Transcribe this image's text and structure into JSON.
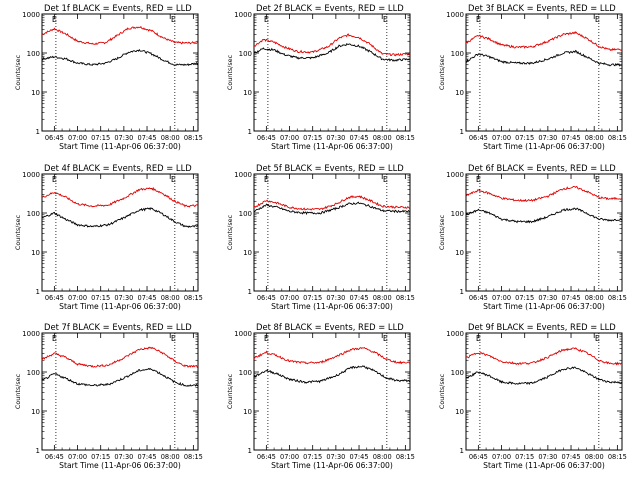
{
  "ylabel": "Counts/sec",
  "xlabel": "Start Time (11-Apr-06 06:37:00)",
  "x_ticks": [
    "06:45",
    "07:00",
    "07:15",
    "07:30",
    "07:45",
    "08:00",
    "08:15"
  ],
  "y_ticks": [
    "1",
    "10",
    "100",
    "1000"
  ],
  "marker_letter": "E",
  "colors": {
    "events": "#000000",
    "lld": "#e00000"
  },
  "chart_data": [
    {
      "type": "line",
      "title": "Det 1f  BLACK = Events, RED = LLD",
      "yscale": "log",
      "ylim": [
        1,
        1000
      ],
      "series": [
        {
          "x": [
            "06:37",
            "06:45",
            "06:53",
            "07:00",
            "07:10",
            "07:18",
            "07:25",
            "07:33",
            "07:40",
            "07:48",
            "07:56",
            "08:03",
            "08:08",
            "08:11",
            "08:18"
          ],
          "values": [
            70,
            80,
            70,
            55,
            50,
            55,
            70,
            105,
            120,
            95,
            65,
            50,
            50,
            50,
            55
          ]
        },
        {
          "x": [
            "06:37",
            "06:45",
            "06:53",
            "07:00",
            "07:10",
            "07:18",
            "07:25",
            "07:33",
            "07:40",
            "07:48",
            "07:56",
            "08:03",
            "08:08",
            "08:11",
            "08:18"
          ],
          "values": [
            300,
            420,
            300,
            200,
            170,
            185,
            270,
            430,
            470,
            370,
            240,
            185,
            180,
            180,
            185
          ]
        }
      ]
    },
    {
      "type": "line",
      "title": "Det 2f  BLACK = Events, RED = LLD",
      "yscale": "log",
      "ylim": [
        1,
        1000
      ],
      "series": [
        {
          "x": [
            "06:37",
            "06:43",
            "06:50",
            "06:57",
            "07:05",
            "07:15",
            "07:25",
            "07:32",
            "07:38",
            "07:45",
            "07:52",
            "08:00",
            "08:08",
            "08:18"
          ],
          "values": [
            100,
            130,
            120,
            90,
            75,
            75,
            100,
            150,
            170,
            150,
            110,
            70,
            65,
            70
          ]
        },
        {
          "x": [
            "06:37",
            "06:43",
            "06:50",
            "06:57",
            "07:05",
            "07:15",
            "07:25",
            "07:32",
            "07:38",
            "07:45",
            "07:52",
            "08:00",
            "08:08",
            "08:18"
          ],
          "values": [
            150,
            220,
            190,
            140,
            110,
            105,
            145,
            240,
            290,
            250,
            170,
            95,
            90,
            95
          ]
        }
      ]
    },
    {
      "type": "line",
      "title": "Det 3f  BLACK = Events, RED = LLD",
      "yscale": "log",
      "ylim": [
        1,
        1000
      ],
      "series": [
        {
          "x": [
            "06:37",
            "06:45",
            "06:52",
            "07:00",
            "07:10",
            "07:20",
            "07:30",
            "07:40",
            "07:48",
            "07:55",
            "08:03",
            "08:10",
            "08:18"
          ],
          "values": [
            60,
            95,
            80,
            60,
            55,
            55,
            70,
            100,
            110,
            80,
            55,
            50,
            50
          ]
        },
        {
          "x": [
            "06:37",
            "06:45",
            "06:52",
            "07:00",
            "07:10",
            "07:20",
            "07:30",
            "07:40",
            "07:48",
            "07:55",
            "08:03",
            "08:10",
            "08:18"
          ],
          "values": [
            180,
            280,
            230,
            160,
            140,
            145,
            200,
            300,
            330,
            240,
            150,
            120,
            125
          ]
        }
      ]
    },
    {
      "type": "line",
      "title": "Det 4f  BLACK = Events, RED = LLD",
      "yscale": "log",
      "ylim": [
        1,
        1000
      ],
      "series": [
        {
          "x": [
            "06:37",
            "06:45",
            "06:52",
            "07:00",
            "07:10",
            "07:20",
            "07:30",
            "07:40",
            "07:48",
            "07:55",
            "08:03",
            "08:10",
            "08:18"
          ],
          "values": [
            75,
            100,
            70,
            50,
            45,
            50,
            75,
            120,
            130,
            95,
            60,
            45,
            45
          ]
        },
        {
          "x": [
            "06:37",
            "06:45",
            "06:52",
            "07:00",
            "07:10",
            "07:20",
            "07:30",
            "07:40",
            "07:48",
            "07:55",
            "08:03",
            "08:10",
            "08:18"
          ],
          "values": [
            250,
            340,
            260,
            170,
            150,
            160,
            240,
            400,
            430,
            320,
            200,
            150,
            155
          ]
        }
      ]
    },
    {
      "type": "line",
      "title": "Det 5f  BLACK = Events, RED = LLD",
      "yscale": "log",
      "ylim": [
        1,
        1000
      ],
      "series": [
        {
          "x": [
            "06:37",
            "06:45",
            "06:52",
            "07:00",
            "07:10",
            "07:20",
            "07:30",
            "07:38",
            "07:45",
            "07:52",
            "08:00",
            "08:10",
            "08:18"
          ],
          "values": [
            110,
            160,
            140,
            110,
            100,
            100,
            130,
            170,
            180,
            150,
            115,
            110,
            110
          ]
        },
        {
          "x": [
            "06:37",
            "06:45",
            "06:52",
            "07:00",
            "07:10",
            "07:20",
            "07:30",
            "07:38",
            "07:45",
            "07:52",
            "08:00",
            "08:10",
            "08:18"
          ],
          "values": [
            140,
            210,
            180,
            140,
            125,
            125,
            170,
            250,
            270,
            210,
            150,
            140,
            140
          ]
        }
      ]
    },
    {
      "type": "line",
      "title": "Det 6f  BLACK = Events, RED = LLD",
      "yscale": "log",
      "ylim": [
        1,
        1000
      ],
      "series": [
        {
          "x": [
            "06:37",
            "06:45",
            "06:52",
            "07:00",
            "07:10",
            "07:20",
            "07:30",
            "07:40",
            "07:48",
            "07:55",
            "08:03",
            "08:10",
            "08:18"
          ],
          "values": [
            90,
            120,
            100,
            70,
            60,
            60,
            80,
            120,
            130,
            100,
            70,
            65,
            70
          ]
        },
        {
          "x": [
            "06:37",
            "06:45",
            "06:52",
            "07:00",
            "07:10",
            "07:20",
            "07:30",
            "07:40",
            "07:48",
            "07:55",
            "08:03",
            "08:10",
            "08:18"
          ],
          "values": [
            280,
            380,
            320,
            240,
            210,
            210,
            270,
            420,
            460,
            360,
            250,
            230,
            240
          ]
        }
      ]
    },
    {
      "type": "line",
      "title": "Det 7f  BLACK = Events, RED = LLD",
      "yscale": "log",
      "ylim": [
        1,
        1000
      ],
      "series": [
        {
          "x": [
            "06:37",
            "06:45",
            "06:52",
            "07:00",
            "07:10",
            "07:20",
            "07:30",
            "07:40",
            "07:48",
            "07:55",
            "08:03",
            "08:10",
            "08:18"
          ],
          "values": [
            60,
            90,
            70,
            50,
            45,
            48,
            70,
            110,
            120,
            85,
            55,
            45,
            45
          ]
        },
        {
          "x": [
            "06:37",
            "06:45",
            "06:52",
            "07:00",
            "07:10",
            "07:20",
            "07:30",
            "07:40",
            "07:48",
            "07:55",
            "08:03",
            "08:10",
            "08:18"
          ],
          "values": [
            210,
            300,
            240,
            160,
            140,
            150,
            230,
            380,
            420,
            310,
            190,
            140,
            140
          ]
        }
      ]
    },
    {
      "type": "line",
      "title": "Det 8f  BLACK = Events, RED = LLD",
      "yscale": "log",
      "ylim": [
        1,
        1000
      ],
      "series": [
        {
          "x": [
            "06:37",
            "06:45",
            "06:52",
            "07:00",
            "07:10",
            "07:20",
            "07:30",
            "07:40",
            "07:48",
            "07:55",
            "08:03",
            "08:10",
            "08:18"
          ],
          "values": [
            75,
            110,
            90,
            65,
            55,
            58,
            80,
            130,
            140,
            105,
            70,
            60,
            60
          ]
        },
        {
          "x": [
            "06:37",
            "06:45",
            "06:52",
            "07:00",
            "07:10",
            "07:20",
            "07:30",
            "07:40",
            "07:48",
            "07:55",
            "08:03",
            "08:10",
            "08:18"
          ],
          "values": [
            230,
            320,
            260,
            190,
            170,
            175,
            250,
            380,
            410,
            320,
            210,
            175,
            175
          ]
        }
      ]
    },
    {
      "type": "line",
      "title": "Det 9f  BLACK = Events, RED = LLD",
      "yscale": "log",
      "ylim": [
        1,
        1000
      ],
      "series": [
        {
          "x": [
            "06:37",
            "06:45",
            "06:52",
            "07:00",
            "07:10",
            "07:20",
            "07:30",
            "07:40",
            "07:48",
            "07:55",
            "08:03",
            "08:10",
            "08:18"
          ],
          "values": [
            70,
            100,
            80,
            55,
            50,
            52,
            75,
            120,
            130,
            95,
            65,
            55,
            55
          ]
        },
        {
          "x": [
            "06:37",
            "06:45",
            "06:52",
            "07:00",
            "07:10",
            "07:20",
            "07:30",
            "07:40",
            "07:48",
            "07:55",
            "08:03",
            "08:10",
            "08:18"
          ],
          "values": [
            230,
            320,
            260,
            185,
            165,
            170,
            240,
            370,
            400,
            310,
            200,
            165,
            165
          ]
        }
      ]
    }
  ]
}
